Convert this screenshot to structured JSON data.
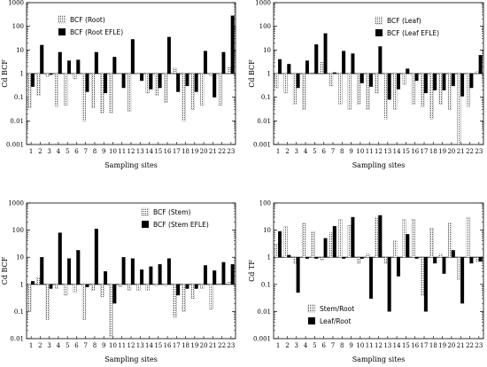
{
  "chart_data": [
    {
      "type": "bar",
      "log_y": true,
      "ylim": [
        0.001,
        1000
      ],
      "ylabel": "Cd BCF",
      "xlabel": "Sampling sites",
      "yticks": [
        "0.001",
        "0.01",
        "0.1",
        "1",
        "10",
        "100",
        "1000"
      ],
      "categories": [
        "1",
        "2",
        "3",
        "4",
        "5",
        "6",
        "7",
        "8",
        "9",
        "10",
        "11",
        "12",
        "13",
        "14",
        "15",
        "16",
        "17",
        "18",
        "19",
        "20",
        "21",
        "22",
        "23"
      ],
      "legend_position": "top-left",
      "series": [
        {
          "name": "BCF (Root)",
          "style": "dotted",
          "values": [
            0.035,
            0.12,
            0.75,
            0.04,
            0.045,
            0.6,
            0.01,
            0.035,
            0.022,
            0.022,
            1,
            0.025,
            1,
            0.15,
            0.12,
            0.06,
            1.7,
            0.01,
            0.03,
            0.045,
            0.8,
            0.045,
            1.8
          ]
        },
        {
          "name": "BCF (Root EFLE)",
          "style": "solid",
          "values": [
            0.28,
            16,
            0.9,
            8,
            3.5,
            3.8,
            0.17,
            8,
            0.15,
            5,
            0.25,
            28,
            0.5,
            0.22,
            0.25,
            35,
            0.17,
            0.3,
            0.17,
            9,
            0.1,
            8,
            280
          ]
        }
      ]
    },
    {
      "type": "bar",
      "log_y": true,
      "ylim": [
        0.001,
        1000
      ],
      "ylabel": "Cd BCF",
      "xlabel": "Sampling sites",
      "yticks": [
        "0.001",
        "0.01",
        "0.1",
        "1",
        "10",
        "100",
        "1000"
      ],
      "categories": [
        "1",
        "2",
        "3",
        "4",
        "5",
        "6",
        "7",
        "8",
        "9",
        "10",
        "11",
        "12",
        "13",
        "14",
        "15",
        "16",
        "17",
        "18",
        "19",
        "20",
        "21",
        "22",
        "23"
      ],
      "legend_position": "top-right",
      "series": [
        {
          "name": "BCF (Leaf)",
          "style": "dotted",
          "values": [
            0.25,
            0.15,
            0.05,
            0.03,
            1.1,
            3,
            0.3,
            0.05,
            0.03,
            0.05,
            0.03,
            0.15,
            0.012,
            0.03,
            0.35,
            0.05,
            0.04,
            0.012,
            0.05,
            0.03,
            0.0008,
            0.04,
            1.2
          ]
        },
        {
          "name": "BCF (Leaf EFLE)",
          "style": "solid",
          "values": [
            4,
            2.5,
            0.25,
            3.5,
            17,
            50,
            1.1,
            9,
            7,
            0.4,
            0.28,
            14,
            0.08,
            0.22,
            1.6,
            0.5,
            0.15,
            0.2,
            0.2,
            0.3,
            0.11,
            0.25,
            6
          ]
        }
      ]
    },
    {
      "type": "bar",
      "log_y": true,
      "ylim": [
        0.01,
        1000
      ],
      "ylabel": "Cd BCF",
      "xlabel": "Sampling sites",
      "yticks": [
        "0.01",
        "0.1",
        "1",
        "10",
        "100",
        "1000"
      ],
      "categories": [
        "1",
        "2",
        "3",
        "4",
        "5",
        "6",
        "7",
        "8",
        "9",
        "10",
        "11",
        "12",
        "13",
        "14",
        "15",
        "16",
        "17",
        "18",
        "19",
        "20",
        "21",
        "22",
        "23"
      ],
      "legend_position": "top-right",
      "series": [
        {
          "name": "BCF (Stem)",
          "style": "dotted",
          "values": [
            0.1,
            1.8,
            0.05,
            0.7,
            0.4,
            0.5,
            0.05,
            0.6,
            0.35,
            0.012,
            0.8,
            0.6,
            0.6,
            0.6,
            0.9,
            0.9,
            0.06,
            0.1,
            0.3,
            0.7,
            0.12,
            1.1,
            1.2
          ]
        },
        {
          "name": "BCF (Stem EFLE)",
          "style": "solid",
          "values": [
            1.3,
            10,
            0.7,
            80,
            9,
            18,
            0.8,
            110,
            3,
            0.2,
            10,
            9,
            3.5,
            4.5,
            5.5,
            9,
            0.4,
            0.7,
            0.7,
            5,
            3.2,
            6.5,
            5.5
          ]
        }
      ]
    },
    {
      "type": "bar",
      "log_y": true,
      "ylim": [
        0.001,
        100
      ],
      "ylabel": "Cd TF",
      "xlabel": "Sampling sites",
      "yticks": [
        "0.001",
        "0.01",
        "0.1",
        "1",
        "10",
        "100"
      ],
      "categories": [
        "1",
        "2",
        "3",
        "4",
        "5",
        "6",
        "7",
        "8",
        "9",
        "10",
        "11",
        "12",
        "13",
        "14",
        "15",
        "16",
        "17",
        "18",
        "19",
        "20",
        "21",
        "22",
        "23"
      ],
      "legend_position": "bottom-center",
      "series": [
        {
          "name": "Stem/Root",
          "style": "dotted",
          "values": [
            3,
            14,
            0.6,
            18,
            9,
            0.8,
            8,
            25,
            15,
            0.6,
            1.3,
            30,
            0.6,
            4,
            25,
            25,
            0.04,
            12,
            1.3,
            18,
            0.15,
            30,
            0.7
          ]
        },
        {
          "name": "Leaf/Root",
          "style": "solid",
          "values": [
            9,
            1.2,
            0.05,
            0.9,
            0.9,
            5,
            14,
            0.9,
            30,
            0.9,
            0.03,
            35,
            0.01,
            0.2,
            7,
            0.9,
            0.01,
            0.6,
            0.25,
            1.8,
            0.02,
            0.6,
            0.7
          ]
        }
      ]
    }
  ]
}
